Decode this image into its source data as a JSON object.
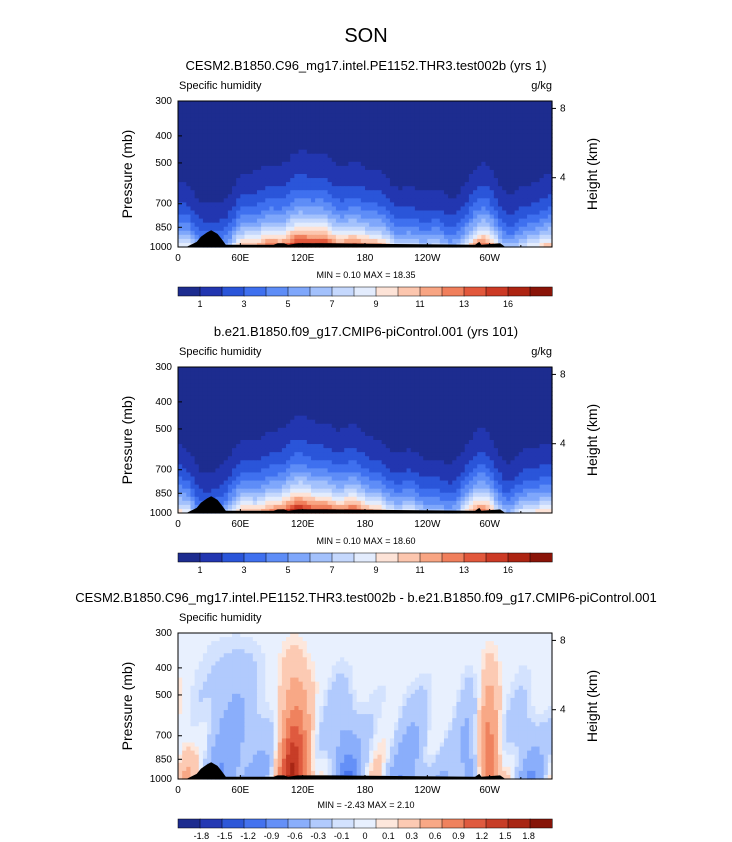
{
  "page_title": "SON",
  "colors": {
    "positive_scale": [
      "#1d2c8f",
      "#2236b0",
      "#2a55d9",
      "#3f70ef",
      "#5e8df7",
      "#7fa7fb",
      "#a3c1fc",
      "#c5d8fd",
      "#e3ecfd",
      "#fde3d7",
      "#fcc6ae",
      "#f8a583",
      "#f07f5c",
      "#e2583c",
      "#cc3a25",
      "#ad2412",
      "#8a1408"
    ],
    "diff_scale": [
      "#1d2c8f",
      "#2439b3",
      "#2d57d8",
      "#4472ee",
      "#6590f7",
      "#8aaefb",
      "#b1cafd",
      "#d3e2fe",
      "#e8f0fe",
      "#fde7dc",
      "#fccab3",
      "#f8a886",
      "#ef825e",
      "#df5a3f",
      "#c73d27",
      "#a82614",
      "#861408"
    ],
    "terrain": "#000000"
  },
  "chart_data": [
    {
      "type": "heatmap",
      "title": "CESM2.B1850.C96_mg17.intel.PE1152.THR3.test002b (yrs 1)",
      "left_label": "Specific humidity",
      "units_label": "g/kg",
      "ylabel": "Pressure (mb)",
      "ylabel_right": "Height (km)",
      "xticks": [
        "0",
        "60E",
        "120E",
        "180",
        "120W",
        "60W"
      ],
      "xtick_values": [
        0,
        60,
        120,
        180,
        240,
        300
      ],
      "xlim": [
        0,
        360
      ],
      "yticks": [
        "300",
        "400",
        "500",
        "700",
        "850",
        "1000"
      ],
      "ytick_values": [
        300,
        400,
        500,
        700,
        850,
        1000
      ],
      "ylim": [
        300,
        1000
      ],
      "right_ticks": [
        "8",
        "4"
      ],
      "right_tick_values": [
        8,
        4
      ],
      "min_max_label": "MIN =   0.10   MAX =  18.35",
      "min": 0.1,
      "max": 18.35,
      "colorbar_labels": [
        "1",
        "3",
        "5",
        "7",
        "9",
        "11",
        "13",
        "16"
      ],
      "field": "abs",
      "variant": 0
    },
    {
      "type": "heatmap",
      "title": "b.e21.B1850.f09_g17.CMIP6-piControl.001 (yrs 101)",
      "left_label": "Specific humidity",
      "units_label": "g/kg",
      "ylabel": "Pressure (mb)",
      "ylabel_right": "Height (km)",
      "xticks": [
        "0",
        "60E",
        "120E",
        "180",
        "120W",
        "60W"
      ],
      "xtick_values": [
        0,
        60,
        120,
        180,
        240,
        300
      ],
      "xlim": [
        0,
        360
      ],
      "yticks": [
        "300",
        "400",
        "500",
        "700",
        "850",
        "1000"
      ],
      "ytick_values": [
        300,
        400,
        500,
        700,
        850,
        1000
      ],
      "ylim": [
        300,
        1000
      ],
      "right_ticks": [
        "8",
        "4"
      ],
      "right_tick_values": [
        8,
        4
      ],
      "min_max_label": "MIN =   0.10   MAX =  18.60",
      "min": 0.1,
      "max": 18.6,
      "colorbar_labels": [
        "1",
        "3",
        "5",
        "7",
        "9",
        "11",
        "13",
        "16"
      ],
      "field": "abs",
      "variant": 1
    },
    {
      "type": "heatmap",
      "title": "CESM2.B1850.C96_mg17.intel.PE1152.THR3.test002b - b.e21.B1850.f09_g17.CMIP6-piControl.001",
      "left_label": "Specific humidity",
      "units_label": "",
      "ylabel": "Pressure (mb)",
      "ylabel_right": "Height (km)",
      "xticks": [
        "0",
        "60E",
        "120E",
        "180",
        "120W",
        "60W"
      ],
      "xtick_values": [
        0,
        60,
        120,
        180,
        240,
        300
      ],
      "xlim": [
        0,
        360
      ],
      "yticks": [
        "300",
        "400",
        "500",
        "700",
        "850",
        "1000"
      ],
      "ytick_values": [
        300,
        400,
        500,
        700,
        850,
        1000
      ],
      "ylim": [
        300,
        1000
      ],
      "right_ticks": [
        "8",
        "4"
      ],
      "right_tick_values": [
        8,
        4
      ],
      "min_max_label": "MIN =  -2.43   MAX =   2.10",
      "min": -2.43,
      "max": 2.1,
      "colorbar_labels": [
        "-1.8",
        "-1.5",
        "-1.2",
        "-0.9",
        "-0.6",
        "-0.3",
        "-0.1",
        "0",
        "0.1",
        "0.3",
        "0.6",
        "0.9",
        "1.2",
        "1.5",
        "1.8"
      ],
      "field": "diff",
      "variant": 2
    }
  ]
}
